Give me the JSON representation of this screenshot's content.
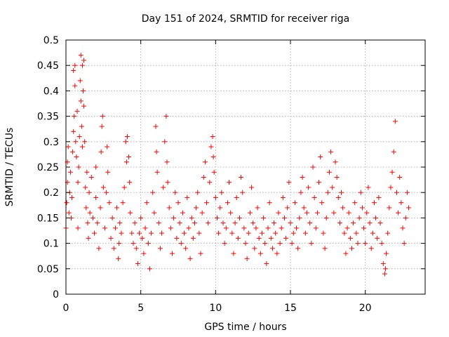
{
  "chart_data": {
    "type": "scatter",
    "title": "Day 151 of 2024, SRMTID for receiver riga",
    "xlabel": "GPS time / hours",
    "ylabel": "SRMTID / TECUs",
    "xlim": [
      0,
      24
    ],
    "ylim": [
      0,
      0.5
    ],
    "xticks": [
      0,
      5,
      10,
      15,
      20
    ],
    "xtick_labels": [
      "0",
      "5",
      "10",
      "15",
      "20"
    ],
    "yticks": [
      0,
      0.05,
      0.1,
      0.15,
      0.2,
      0.25,
      0.3,
      0.35,
      0.4,
      0.45,
      0.5
    ],
    "ytick_labels": [
      "0",
      "0.05",
      "0.1",
      "0.15",
      "0.2",
      "0.25",
      "0.3",
      "0.35",
      "0.4",
      "0.45",
      "0.5"
    ],
    "grid": true,
    "marker": "+",
    "color": "#ff0000",
    "series": [
      {
        "name": "SRMTID",
        "points": [
          [
            0.0,
            0.13
          ],
          [
            0.05,
            0.18
          ],
          [
            0.1,
            0.22
          ],
          [
            0.1,
            0.26
          ],
          [
            0.15,
            0.29
          ],
          [
            0.2,
            0.16
          ],
          [
            0.25,
            0.2
          ],
          [
            0.3,
            0.24
          ],
          [
            0.35,
            0.15
          ],
          [
            0.4,
            0.19
          ],
          [
            0.45,
            0.28
          ],
          [
            0.5,
            0.32
          ],
          [
            0.5,
            0.44
          ],
          [
            0.55,
            0.35
          ],
          [
            0.6,
            0.41
          ],
          [
            0.6,
            0.45
          ],
          [
            0.65,
            0.3
          ],
          [
            0.7,
            0.27
          ],
          [
            0.75,
            0.36
          ],
          [
            0.8,
            0.22
          ],
          [
            0.8,
            0.13
          ],
          [
            0.85,
            0.25
          ],
          [
            0.9,
            0.31
          ],
          [
            0.95,
            0.42
          ],
          [
            1.0,
            0.38
          ],
          [
            1.0,
            0.47
          ],
          [
            1.05,
            0.33
          ],
          [
            1.1,
            0.45
          ],
          [
            1.1,
            0.29
          ],
          [
            1.15,
            0.4
          ],
          [
            1.2,
            0.37
          ],
          [
            1.2,
            0.46
          ],
          [
            1.25,
            0.3
          ],
          [
            1.3,
            0.21
          ],
          [
            1.35,
            0.17
          ],
          [
            1.4,
            0.24
          ],
          [
            1.45,
            0.14
          ],
          [
            1.5,
            0.11
          ],
          [
            1.55,
            0.2
          ],
          [
            1.6,
            0.16
          ],
          [
            1.7,
            0.23
          ],
          [
            1.8,
            0.15
          ],
          [
            1.9,
            0.12
          ],
          [
            2.0,
            0.19
          ],
          [
            2.0,
            0.25
          ],
          [
            2.1,
            0.14
          ],
          [
            2.2,
            0.09
          ],
          [
            2.3,
            0.17
          ],
          [
            2.35,
            0.28
          ],
          [
            2.4,
            0.33
          ],
          [
            2.45,
            0.35
          ],
          [
            2.5,
            0.21
          ],
          [
            2.6,
            0.13
          ],
          [
            2.7,
            0.2
          ],
          [
            2.75,
            0.29
          ],
          [
            2.8,
            0.24
          ],
          [
            2.9,
            0.18
          ],
          [
            3.0,
            0.11
          ],
          [
            3.1,
            0.15
          ],
          [
            3.2,
            0.09
          ],
          [
            3.3,
            0.13
          ],
          [
            3.4,
            0.17
          ],
          [
            3.5,
            0.07
          ],
          [
            3.55,
            0.1
          ],
          [
            3.6,
            0.14
          ],
          [
            3.7,
            0.12
          ],
          [
            3.8,
            0.18
          ],
          [
            3.9,
            0.21
          ],
          [
            4.0,
            0.3
          ],
          [
            4.05,
            0.26
          ],
          [
            4.1,
            0.31
          ],
          [
            4.2,
            0.27
          ],
          [
            4.25,
            0.22
          ],
          [
            4.3,
            0.16
          ],
          [
            4.4,
            0.12
          ],
          [
            4.5,
            0.1
          ],
          [
            4.6,
            0.14
          ],
          [
            4.7,
            0.09
          ],
          [
            4.8,
            0.06
          ],
          [
            4.9,
            0.12
          ],
          [
            5.0,
            0.15
          ],
          [
            5.1,
            0.11
          ],
          [
            5.2,
            0.08
          ],
          [
            5.3,
            0.13
          ],
          [
            5.4,
            0.18
          ],
          [
            5.5,
            0.1
          ],
          [
            5.6,
            0.05
          ],
          [
            5.7,
            0.12
          ],
          [
            5.8,
            0.2
          ],
          [
            5.9,
            0.16
          ],
          [
            6.0,
            0.33
          ],
          [
            6.05,
            0.28
          ],
          [
            6.1,
            0.24
          ],
          [
            6.2,
            0.14
          ],
          [
            6.3,
            0.09
          ],
          [
            6.4,
            0.12
          ],
          [
            6.5,
            0.21
          ],
          [
            6.6,
            0.3
          ],
          [
            6.7,
            0.35
          ],
          [
            6.75,
            0.26
          ],
          [
            6.8,
            0.22
          ],
          [
            6.9,
            0.17
          ],
          [
            7.0,
            0.13
          ],
          [
            7.1,
            0.08
          ],
          [
            7.2,
            0.15
          ],
          [
            7.3,
            0.2
          ],
          [
            7.4,
            0.11
          ],
          [
            7.5,
            0.18
          ],
          [
            7.6,
            0.14
          ],
          [
            7.7,
            0.1
          ],
          [
            7.8,
            0.16
          ],
          [
            7.9,
            0.12
          ],
          [
            8.0,
            0.09
          ],
          [
            8.1,
            0.19
          ],
          [
            8.2,
            0.13
          ],
          [
            8.3,
            0.07
          ],
          [
            8.4,
            0.15
          ],
          [
            8.5,
            0.11
          ],
          [
            8.6,
            0.14
          ],
          [
            8.7,
            0.17
          ],
          [
            8.8,
            0.2
          ],
          [
            8.9,
            0.12
          ],
          [
            9.0,
            0.08
          ],
          [
            9.1,
            0.16
          ],
          [
            9.2,
            0.23
          ],
          [
            9.3,
            0.26
          ],
          [
            9.4,
            0.18
          ],
          [
            9.5,
            0.14
          ],
          [
            9.6,
            0.22
          ],
          [
            9.7,
            0.29
          ],
          [
            9.8,
            0.31
          ],
          [
            9.85,
            0.27
          ],
          [
            9.9,
            0.24
          ],
          [
            10.0,
            0.19
          ],
          [
            10.1,
            0.15
          ],
          [
            10.2,
            0.12
          ],
          [
            10.3,
            0.17
          ],
          [
            10.4,
            0.2
          ],
          [
            10.5,
            0.14
          ],
          [
            10.6,
            0.1
          ],
          [
            10.7,
            0.13
          ],
          [
            10.8,
            0.18
          ],
          [
            10.9,
            0.22
          ],
          [
            11.0,
            0.16
          ],
          [
            11.1,
            0.12
          ],
          [
            11.2,
            0.08
          ],
          [
            11.3,
            0.14
          ],
          [
            11.4,
            0.19
          ],
          [
            11.5,
            0.11
          ],
          [
            11.6,
            0.15
          ],
          [
            11.7,
            0.23
          ],
          [
            11.8,
            0.2
          ],
          [
            11.9,
            0.13
          ],
          [
            12.0,
            0.1
          ],
          [
            12.1,
            0.07
          ],
          [
            12.2,
            0.12
          ],
          [
            12.3,
            0.16
          ],
          [
            12.4,
            0.21
          ],
          [
            12.5,
            0.14
          ],
          [
            12.6,
            0.09
          ],
          [
            12.7,
            0.13
          ],
          [
            12.8,
            0.17
          ],
          [
            12.9,
            0.11
          ],
          [
            13.0,
            0.08
          ],
          [
            13.1,
            0.12
          ],
          [
            13.2,
            0.15
          ],
          [
            13.3,
            0.1
          ],
          [
            13.4,
            0.06
          ],
          [
            13.5,
            0.13
          ],
          [
            13.6,
            0.18
          ],
          [
            13.7,
            0.11
          ],
          [
            13.8,
            0.09
          ],
          [
            13.9,
            0.14
          ],
          [
            14.0,
            0.12
          ],
          [
            14.1,
            0.08
          ],
          [
            14.2,
            0.16
          ],
          [
            14.3,
            0.1
          ],
          [
            14.4,
            0.13
          ],
          [
            14.5,
            0.19
          ],
          [
            14.6,
            0.15
          ],
          [
            14.7,
            0.11
          ],
          [
            14.8,
            0.17
          ],
          [
            14.9,
            0.22
          ],
          [
            15.0,
            0.14
          ],
          [
            15.1,
            0.1
          ],
          [
            15.2,
            0.12
          ],
          [
            15.3,
            0.18
          ],
          [
            15.4,
            0.13
          ],
          [
            15.5,
            0.09
          ],
          [
            15.6,
            0.15
          ],
          [
            15.7,
            0.2
          ],
          [
            15.8,
            0.23
          ],
          [
            15.9,
            0.17
          ],
          [
            16.0,
            0.12
          ],
          [
            16.1,
            0.16
          ],
          [
            16.2,
            0.21
          ],
          [
            16.3,
            0.14
          ],
          [
            16.4,
            0.1
          ],
          [
            16.5,
            0.25
          ],
          [
            16.6,
            0.19
          ],
          [
            16.7,
            0.13
          ],
          [
            16.8,
            0.16
          ],
          [
            16.9,
            0.22
          ],
          [
            17.0,
            0.27
          ],
          [
            17.1,
            0.18
          ],
          [
            17.2,
            0.12
          ],
          [
            17.3,
            0.09
          ],
          [
            17.4,
            0.15
          ],
          [
            17.5,
            0.2
          ],
          [
            17.6,
            0.24
          ],
          [
            17.7,
            0.28
          ],
          [
            17.8,
            0.21
          ],
          [
            17.9,
            0.16
          ],
          [
            18.0,
            0.26
          ],
          [
            18.1,
            0.23
          ],
          [
            18.2,
            0.19
          ],
          [
            18.3,
            0.14
          ],
          [
            18.4,
            0.2
          ],
          [
            18.5,
            0.17
          ],
          [
            18.6,
            0.12
          ],
          [
            18.7,
            0.08
          ],
          [
            18.8,
            0.13
          ],
          [
            18.9,
            0.16
          ],
          [
            19.0,
            0.11
          ],
          [
            19.1,
            0.09
          ],
          [
            19.2,
            0.14
          ],
          [
            19.3,
            0.18
          ],
          [
            19.4,
            0.12
          ],
          [
            19.5,
            0.1
          ],
          [
            19.6,
            0.15
          ],
          [
            19.7,
            0.2
          ],
          [
            19.8,
            0.17
          ],
          [
            19.9,
            0.13
          ],
          [
            20.0,
            0.1
          ],
          [
            20.1,
            0.16
          ],
          [
            20.2,
            0.21
          ],
          [
            20.3,
            0.14
          ],
          [
            20.4,
            0.09
          ],
          [
            20.5,
            0.12
          ],
          [
            20.6,
            0.18
          ],
          [
            20.7,
            0.15
          ],
          [
            20.8,
            0.11
          ],
          [
            20.9,
            0.19
          ],
          [
            21.0,
            0.14
          ],
          [
            21.1,
            0.1
          ],
          [
            21.2,
            0.06
          ],
          [
            21.3,
            0.04
          ],
          [
            21.35,
            0.05
          ],
          [
            21.4,
            0.08
          ],
          [
            21.5,
            0.12
          ],
          [
            21.6,
            0.17
          ],
          [
            21.7,
            0.21
          ],
          [
            21.8,
            0.24
          ],
          [
            21.9,
            0.28
          ],
          [
            22.0,
            0.34
          ],
          [
            22.1,
            0.2
          ],
          [
            22.2,
            0.16
          ],
          [
            22.3,
            0.23
          ],
          [
            22.4,
            0.18
          ],
          [
            22.5,
            0.13
          ],
          [
            22.6,
            0.1
          ],
          [
            22.7,
            0.15
          ],
          [
            22.8,
            0.2
          ],
          [
            22.9,
            0.17
          ]
        ]
      }
    ]
  }
}
